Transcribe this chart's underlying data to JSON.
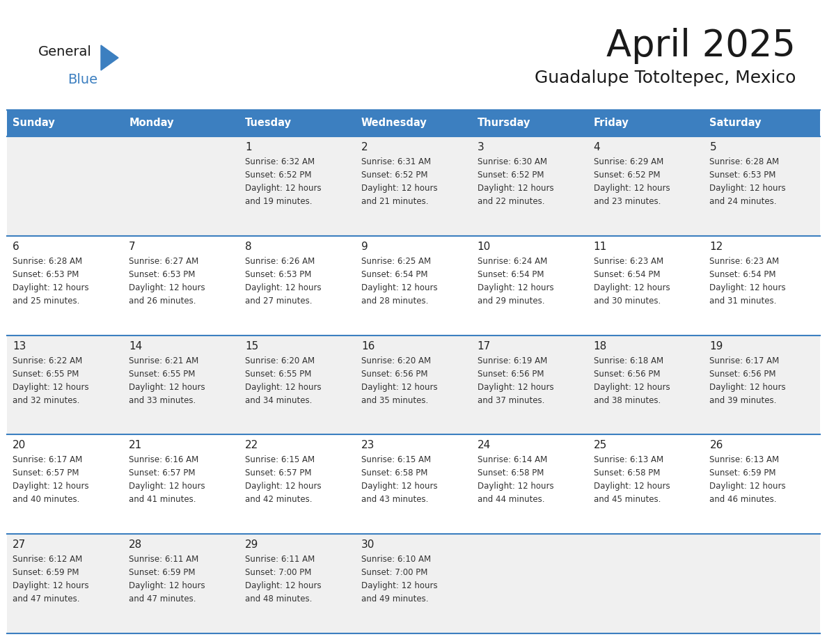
{
  "title": "April 2025",
  "subtitle": "Guadalupe Totoltepec, Mexico",
  "header_bg_color": "#3c7fc0",
  "header_text_color": "#ffffff",
  "cell_bg_color_even": "#f0f0f0",
  "cell_bg_color_odd": "#ffffff",
  "day_number_color": "#222222",
  "cell_text_color": "#333333",
  "grid_line_color": "#3c7fc0",
  "logo_color1": "#222222",
  "logo_color2": "#3c7fc0",
  "days_of_week": [
    "Sunday",
    "Monday",
    "Tuesday",
    "Wednesday",
    "Thursday",
    "Friday",
    "Saturday"
  ],
  "calendar_data": [
    [
      {
        "day": "",
        "sunrise": "",
        "sunset": "",
        "daylight_min": null
      },
      {
        "day": "",
        "sunrise": "",
        "sunset": "",
        "daylight_min": null
      },
      {
        "day": "1",
        "sunrise": "6:32 AM",
        "sunset": "6:52 PM",
        "daylight_min": 19
      },
      {
        "day": "2",
        "sunrise": "6:31 AM",
        "sunset": "6:52 PM",
        "daylight_min": 21
      },
      {
        "day": "3",
        "sunrise": "6:30 AM",
        "sunset": "6:52 PM",
        "daylight_min": 22
      },
      {
        "day": "4",
        "sunrise": "6:29 AM",
        "sunset": "6:52 PM",
        "daylight_min": 23
      },
      {
        "day": "5",
        "sunrise": "6:28 AM",
        "sunset": "6:53 PM",
        "daylight_min": 24
      }
    ],
    [
      {
        "day": "6",
        "sunrise": "6:28 AM",
        "sunset": "6:53 PM",
        "daylight_min": 25
      },
      {
        "day": "7",
        "sunrise": "6:27 AM",
        "sunset": "6:53 PM",
        "daylight_min": 26
      },
      {
        "day": "8",
        "sunrise": "6:26 AM",
        "sunset": "6:53 PM",
        "daylight_min": 27
      },
      {
        "day": "9",
        "sunrise": "6:25 AM",
        "sunset": "6:54 PM",
        "daylight_min": 28
      },
      {
        "day": "10",
        "sunrise": "6:24 AM",
        "sunset": "6:54 PM",
        "daylight_min": 29
      },
      {
        "day": "11",
        "sunrise": "6:23 AM",
        "sunset": "6:54 PM",
        "daylight_min": 30
      },
      {
        "day": "12",
        "sunrise": "6:23 AM",
        "sunset": "6:54 PM",
        "daylight_min": 31
      }
    ],
    [
      {
        "day": "13",
        "sunrise": "6:22 AM",
        "sunset": "6:55 PM",
        "daylight_min": 32
      },
      {
        "day": "14",
        "sunrise": "6:21 AM",
        "sunset": "6:55 PM",
        "daylight_min": 33
      },
      {
        "day": "15",
        "sunrise": "6:20 AM",
        "sunset": "6:55 PM",
        "daylight_min": 34
      },
      {
        "day": "16",
        "sunrise": "6:20 AM",
        "sunset": "6:56 PM",
        "daylight_min": 35
      },
      {
        "day": "17",
        "sunrise": "6:19 AM",
        "sunset": "6:56 PM",
        "daylight_min": 37
      },
      {
        "day": "18",
        "sunrise": "6:18 AM",
        "sunset": "6:56 PM",
        "daylight_min": 38
      },
      {
        "day": "19",
        "sunrise": "6:17 AM",
        "sunset": "6:56 PM",
        "daylight_min": 39
      }
    ],
    [
      {
        "day": "20",
        "sunrise": "6:17 AM",
        "sunset": "6:57 PM",
        "daylight_min": 40
      },
      {
        "day": "21",
        "sunrise": "6:16 AM",
        "sunset": "6:57 PM",
        "daylight_min": 41
      },
      {
        "day": "22",
        "sunrise": "6:15 AM",
        "sunset": "6:57 PM",
        "daylight_min": 42
      },
      {
        "day": "23",
        "sunrise": "6:15 AM",
        "sunset": "6:58 PM",
        "daylight_min": 43
      },
      {
        "day": "24",
        "sunrise": "6:14 AM",
        "sunset": "6:58 PM",
        "daylight_min": 44
      },
      {
        "day": "25",
        "sunrise": "6:13 AM",
        "sunset": "6:58 PM",
        "daylight_min": 45
      },
      {
        "day": "26",
        "sunrise": "6:13 AM",
        "sunset": "6:59 PM",
        "daylight_min": 46
      }
    ],
    [
      {
        "day": "27",
        "sunrise": "6:12 AM",
        "sunset": "6:59 PM",
        "daylight_min": 47
      },
      {
        "day": "28",
        "sunrise": "6:11 AM",
        "sunset": "6:59 PM",
        "daylight_min": 47
      },
      {
        "day": "29",
        "sunrise": "6:11 AM",
        "sunset": "7:00 PM",
        "daylight_min": 48
      },
      {
        "day": "30",
        "sunrise": "6:10 AM",
        "sunset": "7:00 PM",
        "daylight_min": 49
      },
      {
        "day": "",
        "sunrise": "",
        "sunset": "",
        "daylight_min": null
      },
      {
        "day": "",
        "sunrise": "",
        "sunset": "",
        "daylight_min": null
      },
      {
        "day": "",
        "sunrise": "",
        "sunset": "",
        "daylight_min": null
      }
    ]
  ]
}
